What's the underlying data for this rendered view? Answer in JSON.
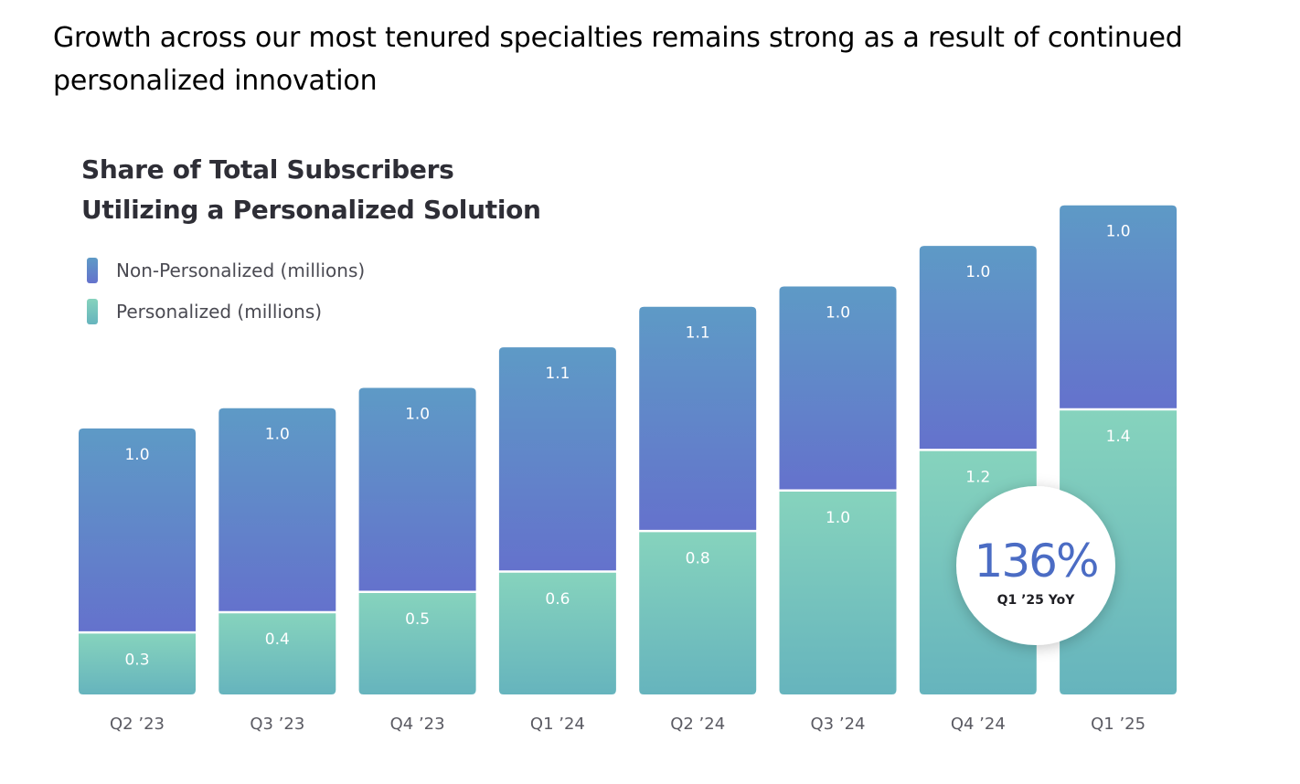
{
  "headline": "Growth across our most tenured specialties remains strong as a result of continued personalized innovation",
  "chart_data": {
    "type": "bar",
    "stacked": true,
    "title_lines": [
      "Share of Total Subscribers",
      "Utilizing a Personalized Solution"
    ],
    "categories": [
      "Q2 ’23",
      "Q3 ’23",
      "Q4 ’23",
      "Q1 ’24",
      "Q2 ’24",
      "Q3 ’24",
      "Q4 ’24",
      "Q1 ’25"
    ],
    "series": [
      {
        "name": "Personalized (millions)",
        "values": [
          0.3,
          0.4,
          0.5,
          0.6,
          0.8,
          1.0,
          1.2,
          1.4
        ],
        "labels": [
          "0.3",
          "0.4",
          "0.5",
          "0.6",
          "0.8",
          "1.0",
          "1.2",
          "1.4"
        ],
        "color_top": "#86d3bd",
        "color_bottom": "#66b4bd"
      },
      {
        "name": "Non-Personalized (millions)",
        "values": [
          1.0,
          1.0,
          1.0,
          1.1,
          1.1,
          1.0,
          1.0,
          1.0
        ],
        "labels": [
          "1.0",
          "1.0",
          "1.0",
          "1.1",
          "1.1",
          "1.0",
          "1.0",
          "1.0"
        ],
        "color_top": "#5e9ac6",
        "color_bottom": "#6472cc"
      }
    ],
    "legend": "top-left",
    "grid": false,
    "callout": {
      "value": "136%",
      "label": "Q1 ’25 YoY",
      "value_color": "#4b6cc4"
    }
  }
}
